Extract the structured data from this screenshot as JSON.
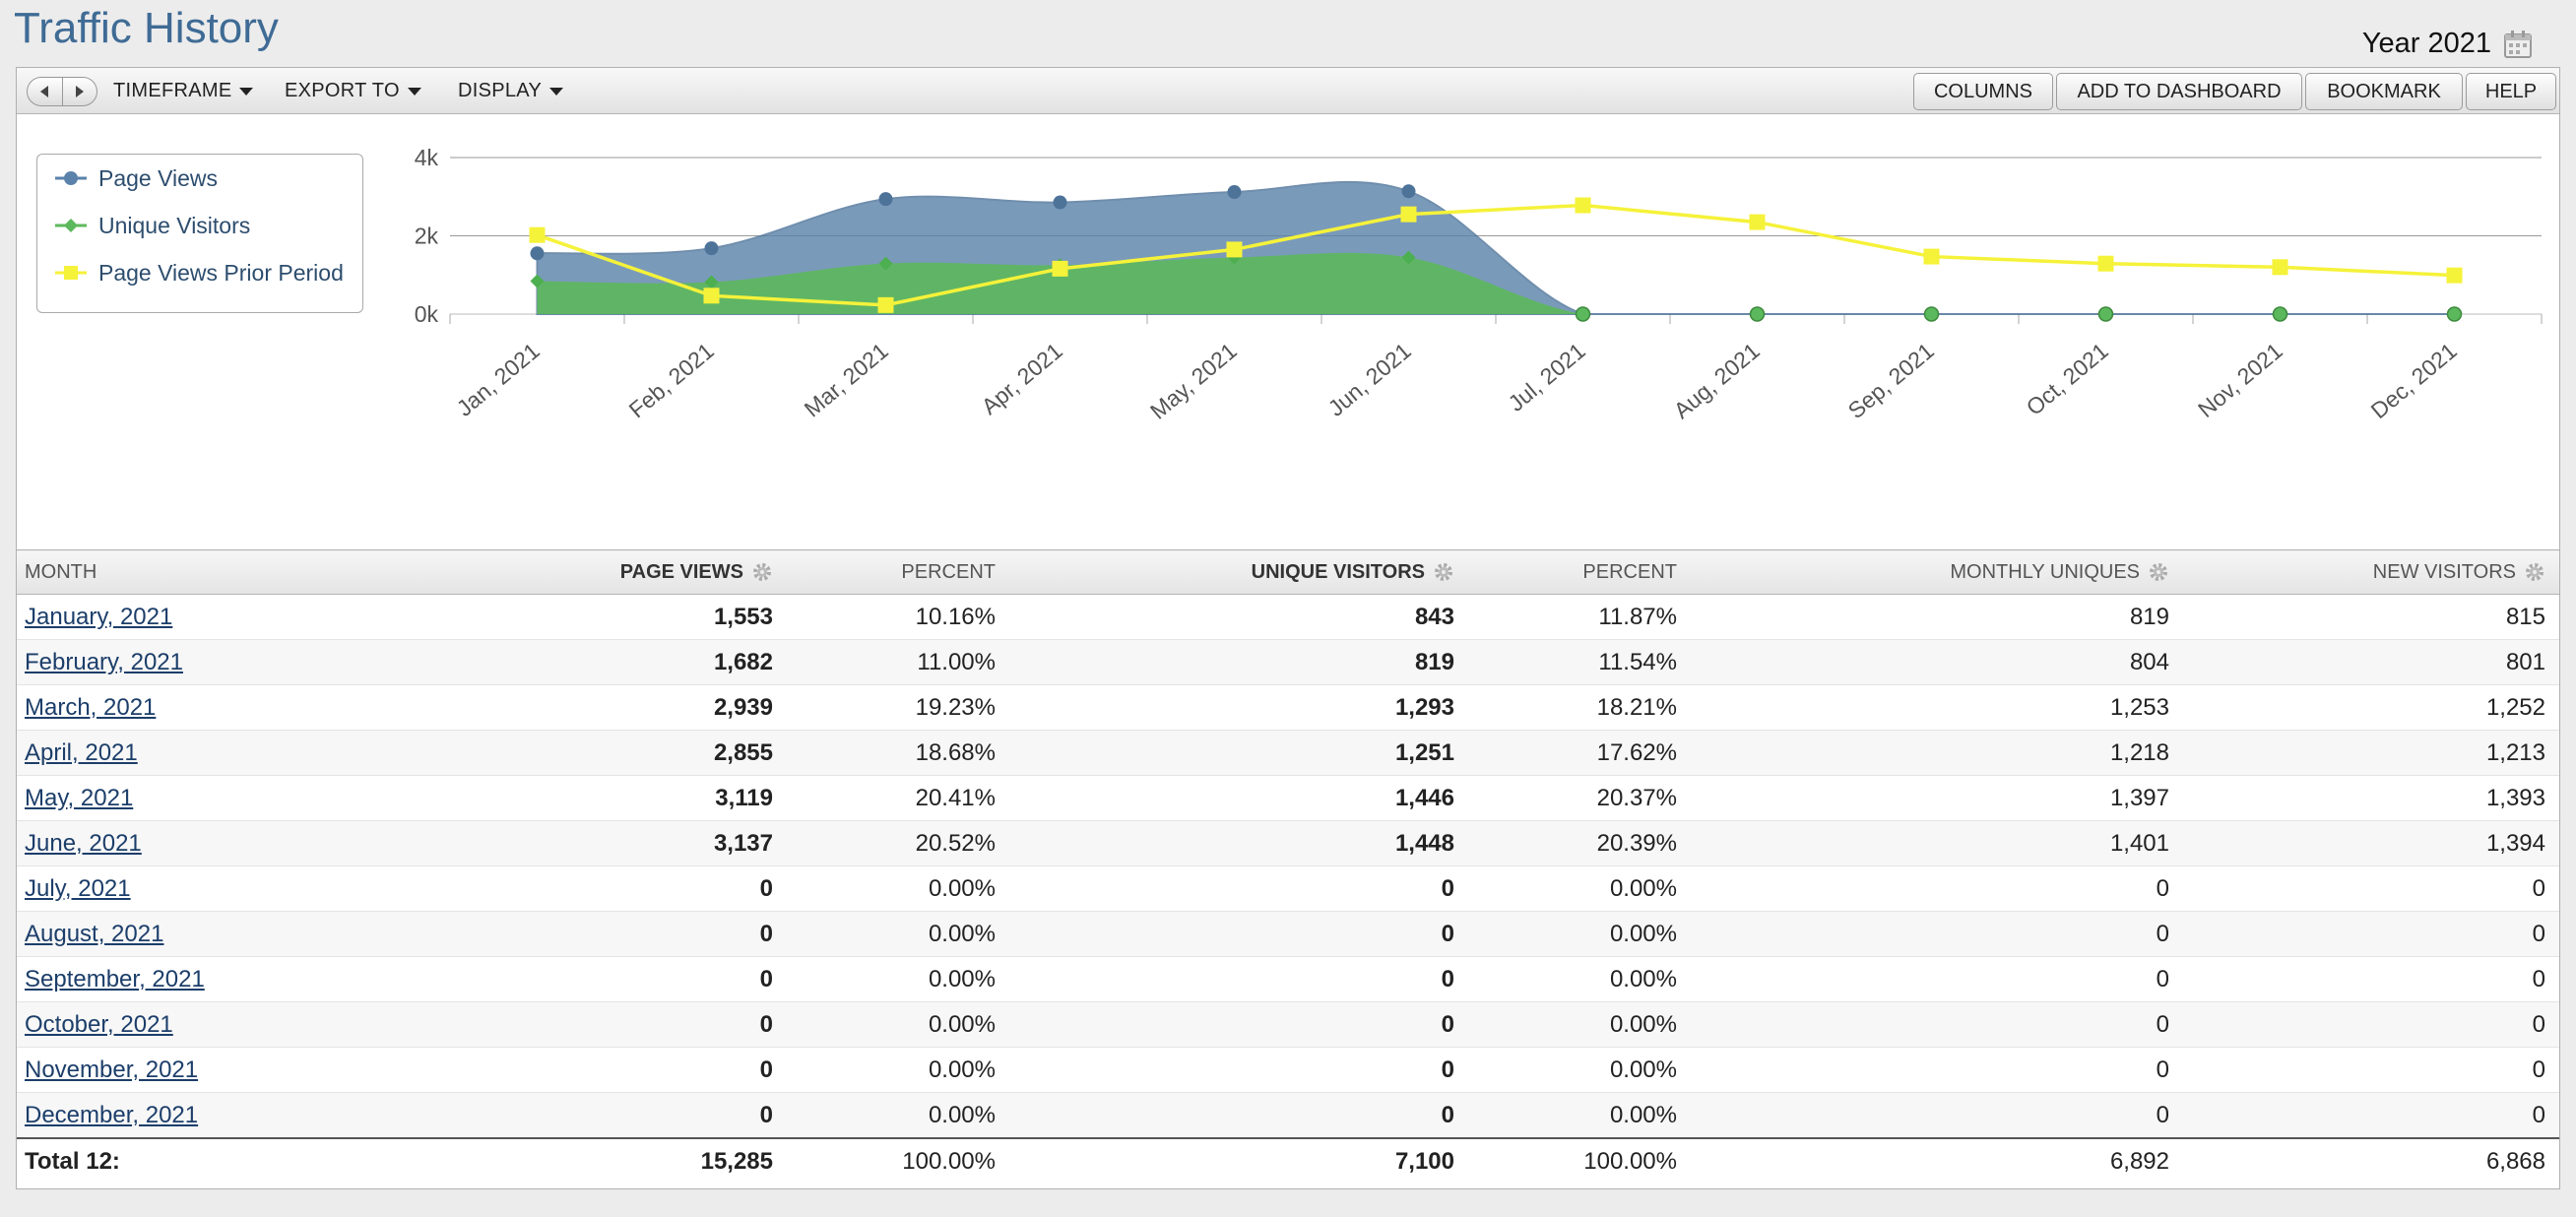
{
  "page": {
    "title": "Traffic History",
    "timeframe": "Year 2021"
  },
  "toolbar": {
    "menus": {
      "timeframe": "TIMEFRAME",
      "export": "EXPORT TO",
      "display": "DISPLAY"
    },
    "buttons": {
      "columns": "COLUMNS",
      "add_to_dashboard": "ADD TO DASHBOARD",
      "bookmark": "BOOKMARK",
      "help": "HELP"
    }
  },
  "legend": {
    "page_views": "Page Views",
    "unique_visitors": "Unique Visitors",
    "prior_period": "Page Views Prior Period"
  },
  "colors": {
    "page_views": "#5a82aa",
    "unique_visitors": "#5cb85c",
    "prior_period": "#f5f23a"
  },
  "chart_data": {
    "type": "area",
    "categories": [
      "Jan, 2021",
      "Feb, 2021",
      "Mar, 2021",
      "Apr, 2021",
      "May, 2021",
      "Jun, 2021",
      "Jul, 2021",
      "Aug, 2021",
      "Sep, 2021",
      "Oct, 2021",
      "Nov, 2021",
      "Dec, 2021"
    ],
    "y_ticks": [
      "0k",
      "2k",
      "4k"
    ],
    "ylim": [
      0,
      4000
    ],
    "grid": true,
    "legend_position": "top-left",
    "series": [
      {
        "name": "Page Views",
        "type": "area",
        "values": [
          1553,
          1682,
          2939,
          2855,
          3119,
          3137,
          0,
          0,
          0,
          0,
          0,
          0
        ]
      },
      {
        "name": "Unique Visitors",
        "type": "area",
        "values": [
          843,
          819,
          1293,
          1251,
          1446,
          1448,
          0,
          0,
          0,
          0,
          0,
          0
        ]
      },
      {
        "name": "Page Views Prior Period",
        "type": "line",
        "values": [
          2020,
          470,
          230,
          1160,
          1650,
          2550,
          2780,
          2350,
          1470,
          1290,
          1200,
          990
        ]
      }
    ]
  },
  "table": {
    "headers": {
      "month": "MONTH",
      "page_views": "PAGE VIEWS",
      "percent1": "PERCENT",
      "unique_visitors": "UNIQUE VISITORS",
      "percent2": "PERCENT",
      "monthly_uniques": "MONTHLY UNIQUES",
      "new_visitors": "NEW VISITORS"
    },
    "rows": [
      {
        "month": "January, 2021",
        "page_views": "1,553",
        "pct1": "10.16%",
        "uv": "843",
        "pct2": "11.87%",
        "mu": "819",
        "nv": "815"
      },
      {
        "month": "February, 2021",
        "page_views": "1,682",
        "pct1": "11.00%",
        "uv": "819",
        "pct2": "11.54%",
        "mu": "804",
        "nv": "801"
      },
      {
        "month": "March, 2021",
        "page_views": "2,939",
        "pct1": "19.23%",
        "uv": "1,293",
        "pct2": "18.21%",
        "mu": "1,253",
        "nv": "1,252"
      },
      {
        "month": "April, 2021",
        "page_views": "2,855",
        "pct1": "18.68%",
        "uv": "1,251",
        "pct2": "17.62%",
        "mu": "1,218",
        "nv": "1,213"
      },
      {
        "month": "May, 2021",
        "page_views": "3,119",
        "pct1": "20.41%",
        "uv": "1,446",
        "pct2": "20.37%",
        "mu": "1,397",
        "nv": "1,393"
      },
      {
        "month": "June, 2021",
        "page_views": "3,137",
        "pct1": "20.52%",
        "uv": "1,448",
        "pct2": "20.39%",
        "mu": "1,401",
        "nv": "1,394"
      },
      {
        "month": "July, 2021",
        "page_views": "0",
        "pct1": "0.00%",
        "uv": "0",
        "pct2": "0.00%",
        "mu": "0",
        "nv": "0"
      },
      {
        "month": "August, 2021",
        "page_views": "0",
        "pct1": "0.00%",
        "uv": "0",
        "pct2": "0.00%",
        "mu": "0",
        "nv": "0"
      },
      {
        "month": "September, 2021",
        "page_views": "0",
        "pct1": "0.00%",
        "uv": "0",
        "pct2": "0.00%",
        "mu": "0",
        "nv": "0"
      },
      {
        "month": "October, 2021",
        "page_views": "0",
        "pct1": "0.00%",
        "uv": "0",
        "pct2": "0.00%",
        "mu": "0",
        "nv": "0"
      },
      {
        "month": "November, 2021",
        "page_views": "0",
        "pct1": "0.00%",
        "uv": "0",
        "pct2": "0.00%",
        "mu": "0",
        "nv": "0"
      },
      {
        "month": "December, 2021",
        "page_views": "0",
        "pct1": "0.00%",
        "uv": "0",
        "pct2": "0.00%",
        "mu": "0",
        "nv": "0"
      }
    ],
    "total": {
      "label": "Total 12:",
      "page_views": "15,285",
      "pct1": "100.00%",
      "uv": "7,100",
      "pct2": "100.00%",
      "mu": "6,892",
      "nv": "6,868"
    }
  }
}
